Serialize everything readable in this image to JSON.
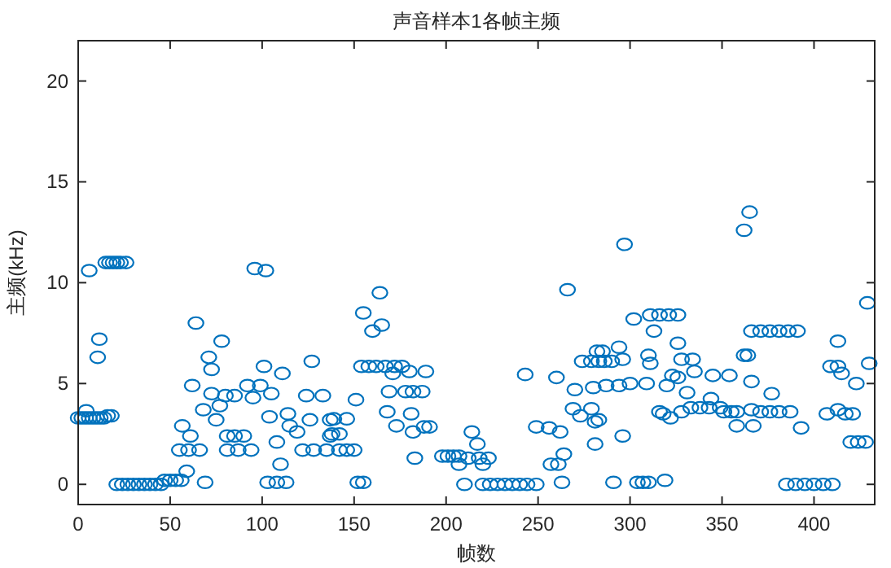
{
  "chart_data": {
    "type": "scatter",
    "title": "声音样本1各帧主频",
    "xlabel": "帧数",
    "ylabel": "主频(kHz)",
    "color": "#0072bd",
    "marker": "circle",
    "xlim": [
      0,
      433
    ],
    "ylim": [
      -1,
      22
    ],
    "xticks": [
      0,
      50,
      100,
      150,
      200,
      250,
      300,
      350,
      400
    ],
    "yticks": [
      0,
      5,
      10,
      15,
      20
    ],
    "x": [
      0,
      2,
      4,
      6,
      8,
      10,
      12,
      14,
      16,
      18,
      4.4,
      6,
      11.5,
      10.6,
      15,
      17,
      19,
      21,
      23,
      26,
      21,
      24,
      27,
      30,
      33,
      36,
      39,
      42,
      45,
      47,
      50,
      53,
      56,
      59,
      64,
      78,
      71,
      72.5,
      62,
      72.5,
      80,
      85,
      68,
      77,
      75,
      56.6,
      61,
      55,
      60,
      66,
      69,
      81,
      85,
      90,
      81,
      87,
      94,
      92,
      99,
      101,
      96,
      102,
      95,
      105,
      104,
      108,
      110,
      103,
      108,
      113,
      111,
      114,
      115,
      119,
      127,
      124,
      133,
      126,
      137,
      122,
      128,
      135,
      137,
      164,
      155,
      165,
      160,
      154,
      158,
      162,
      167,
      172,
      176,
      171,
      180,
      189,
      169,
      178,
      182,
      187,
      151,
      168,
      181,
      173,
      188,
      191,
      182,
      139,
      146,
      138,
      142,
      142,
      146,
      150,
      152,
      155,
      183,
      198,
      201,
      204,
      207,
      207,
      214,
      217,
      212,
      218,
      223,
      220,
      210,
      220,
      224,
      228,
      232,
      236,
      240,
      244,
      249,
      263,
      257,
      261,
      264,
      243,
      260,
      266,
      249,
      256,
      262,
      269,
      279,
      273,
      283,
      270,
      274,
      279,
      283,
      282,
      281,
      365,
      362,
      297,
      429,
      302,
      311,
      316,
      321,
      326,
      313,
      366,
      371,
      376,
      381,
      386,
      391,
      326,
      413,
      310,
      362,
      364,
      285,
      294,
      286,
      290,
      296,
      311,
      328,
      334,
      323,
      326,
      335,
      345,
      354,
      366,
      287,
      294,
      300,
      309,
      320,
      331,
      344,
      333,
      338,
      343,
      349,
      351,
      355,
      358,
      318,
      322,
      328,
      358,
      367,
      366,
      371,
      376,
      381,
      387,
      377,
      393,
      407,
      413,
      417,
      421,
      409,
      413,
      415,
      423,
      430,
      420,
      424,
      428,
      385,
      390,
      395,
      400,
      405,
      410,
      291,
      304,
      307,
      310,
      319,
      280,
      281,
      296,
      316
    ],
    "values": [
      3.3,
      3.3,
      3.3,
      3.3,
      3.3,
      3.3,
      3.3,
      3.3,
      3.4,
      3.4,
      3.65,
      10.6,
      7.2,
      6.3,
      11,
      11,
      11,
      11,
      11,
      11,
      0,
      0,
      0,
      0,
      0,
      0,
      0,
      0,
      0,
      0.2,
      0.2,
      0.2,
      0.2,
      0.65,
      8,
      7.1,
      6.3,
      5.7,
      4.9,
      4.5,
      4.4,
      4.4,
      3.7,
      3.9,
      3.2,
      2.9,
      2.4,
      1.7,
      1.7,
      1.7,
      0.1,
      2.4,
      2.4,
      2.4,
      1.7,
      1.7,
      1.7,
      4.9,
      4.9,
      5.85,
      10.7,
      10.6,
      4.3,
      4.5,
      3.35,
      2.1,
      1,
      0.1,
      0.1,
      0.1,
      5.5,
      3.5,
      2.9,
      2.6,
      6.1,
      4.4,
      4.4,
      3.2,
      3.2,
      1.7,
      1.7,
      1.7,
      2.4,
      9.5,
      8.5,
      7.9,
      7.6,
      5.85,
      5.85,
      5.85,
      5.85,
      5.85,
      5.85,
      5.5,
      5.6,
      5.6,
      4.6,
      4.6,
      4.6,
      4.6,
      4.2,
      3.6,
      3.5,
      2.9,
      2.85,
      2.85,
      2.6,
      3.25,
      3.25,
      2.5,
      2.5,
      1.7,
      1.7,
      1.7,
      0.1,
      0.1,
      1.3,
      1.4,
      1.4,
      1.4,
      1.4,
      1,
      2.6,
      2,
      1.3,
      1.3,
      1.3,
      1,
      0,
      0,
      0,
      0,
      0,
      0,
      0,
      0,
      0,
      0.1,
      1,
      1,
      1.5,
      5.45,
      5.3,
      9.65,
      2.85,
      2.8,
      2.6,
      3.75,
      3.75,
      3.4,
      3.2,
      4.7,
      6.1,
      6.1,
      6.1,
      6.6,
      2,
      13.5,
      12.6,
      11.9,
      9,
      8.2,
      8.4,
      8.4,
      8.4,
      8.4,
      7.6,
      7.6,
      7.6,
      7.6,
      7.6,
      7.6,
      7.6,
      7,
      7.1,
      6.4,
      6.4,
      6.4,
      6.6,
      6.8,
      6.1,
      6.1,
      6.2,
      6,
      6.2,
      6.2,
      5.4,
      5.3,
      5.6,
      5.4,
      5.4,
      5.1,
      4.9,
      4.9,
      5,
      5,
      4.9,
      4.55,
      4.25,
      3.8,
      3.8,
      3.8,
      3.8,
      3.6,
      3.6,
      3.6,
      3.5,
      3.3,
      3.6,
      2.9,
      2.9,
      3.7,
      3.6,
      3.6,
      3.6,
      3.6,
      4.5,
      2.8,
      3.5,
      3.7,
      3.5,
      3.5,
      5.85,
      5.85,
      5.5,
      5,
      6,
      2.1,
      2.1,
      2.1,
      0,
      0,
      0,
      0,
      0,
      0,
      0.1,
      0.1,
      0.1,
      0.1,
      0.2,
      4.8,
      3.1,
      2.4,
      3.6
    ]
  }
}
